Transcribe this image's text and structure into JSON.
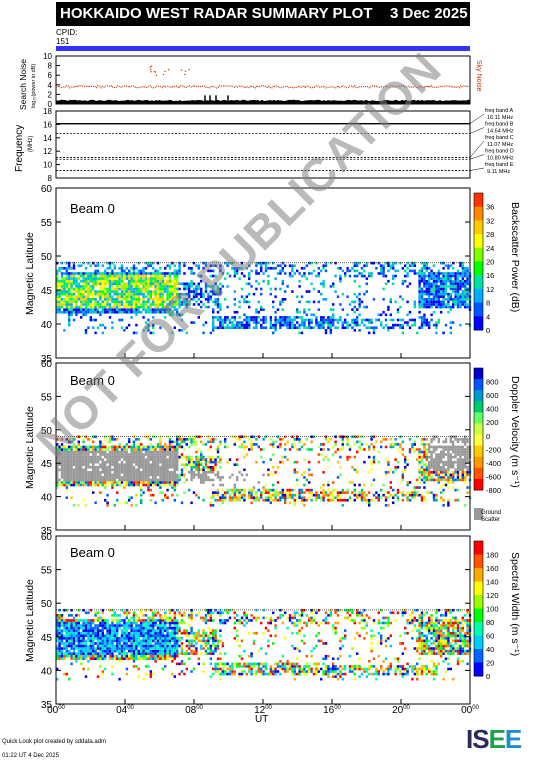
{
  "header": {
    "title": "HOKKAIDO WEST RADAR SUMMARY PLOT",
    "date": "3 Dec 2025",
    "cpid_label": "CPID:",
    "cpid_value": "151"
  },
  "colors": {
    "title_bg": "#000000",
    "cpid_bar": "#3333ff",
    "sky_noise": "#cc3300",
    "search_noise": "#000000",
    "ground_scatter": "#999999"
  },
  "footer": {
    "credit": "Quick Look plot created by sddata.adm",
    "generated": "01:22 UT  4 Dec 2025",
    "logo_text": "ISEE"
  },
  "watermark": "NOT FOR PUBLICATION",
  "chart_data": [
    {
      "type": "line",
      "name": "noise",
      "ylabel": "Search Noise",
      "ylabel_sub": "log₁₀(power in dB)",
      "ylim": [
        0,
        10
      ],
      "yticks": [
        0,
        2,
        4,
        6,
        8,
        10
      ],
      "legend": "Sky Noise",
      "sky_noise_level": 3.6,
      "search_noise_level": 0.6
    },
    {
      "type": "line",
      "name": "frequency",
      "ylabel": "Frequency",
      "yunit": "(MHz)",
      "ylim": [
        8,
        18
      ],
      "yticks": [
        8,
        10,
        12,
        14,
        16,
        18
      ],
      "bands": [
        {
          "label": "freq band A",
          "value": "16.11 MHz",
          "f": 16.11
        },
        {
          "label": "freq band B",
          "value": "14.64 MHz",
          "f": 14.64
        },
        {
          "label": "freq band C",
          "value": "11.07 MHz",
          "f": 11.07
        },
        {
          "label": "freq band D",
          "value": "10.80 MHz",
          "f": 10.8
        },
        {
          "label": "freq band E",
          "value": "9.11 MHz",
          "f": 9.11
        }
      ]
    },
    {
      "type": "heatmap",
      "name": "power",
      "beam": "Beam  0",
      "ylabel": "Magnetic Latitude",
      "ylim": [
        35,
        60
      ],
      "yticks": [
        35,
        40,
        45,
        50,
        55,
        60
      ],
      "colorbar_label": "Backscatter Power (dB)",
      "colorbar_ticks": [
        "36",
        "32",
        "28",
        "24",
        "20",
        "16",
        "12",
        "8",
        "4",
        "0"
      ]
    },
    {
      "type": "heatmap",
      "name": "velocity",
      "beam": "Beam  0",
      "ylabel": "Magnetic Latitude",
      "ylim": [
        35,
        60
      ],
      "yticks": [
        35,
        40,
        45,
        50,
        55,
        60
      ],
      "colorbar_label": "Doppler Velocity (m s⁻¹)",
      "colorbar_ticks": [
        "800",
        "600",
        "400",
        "200",
        "0",
        "-200",
        "-400",
        "-600",
        "-800"
      ],
      "gs_label_1": "Ground",
      "gs_label_2": "Scatter"
    },
    {
      "type": "heatmap",
      "name": "width",
      "beam": "Beam  0",
      "ylabel": "Magnetic Latitude",
      "ylim": [
        35,
        60
      ],
      "yticks": [
        35,
        40,
        45,
        50,
        55,
        60
      ],
      "colorbar_label": "Spectral Width (m s⁻¹)",
      "colorbar_ticks": [
        "180",
        "160",
        "140",
        "120",
        "100",
        "80",
        "60",
        "40",
        "20",
        "0"
      ]
    }
  ],
  "x_axis": {
    "label": "UT",
    "ticks": [
      {
        "h": "00",
        "m": "00"
      },
      {
        "h": "04",
        "m": "00"
      },
      {
        "h": "08",
        "m": "00"
      },
      {
        "h": "12",
        "m": "00"
      },
      {
        "h": "16",
        "m": "00"
      },
      {
        "h": "20",
        "m": "00"
      },
      {
        "h": "00",
        "m": "00"
      }
    ]
  }
}
